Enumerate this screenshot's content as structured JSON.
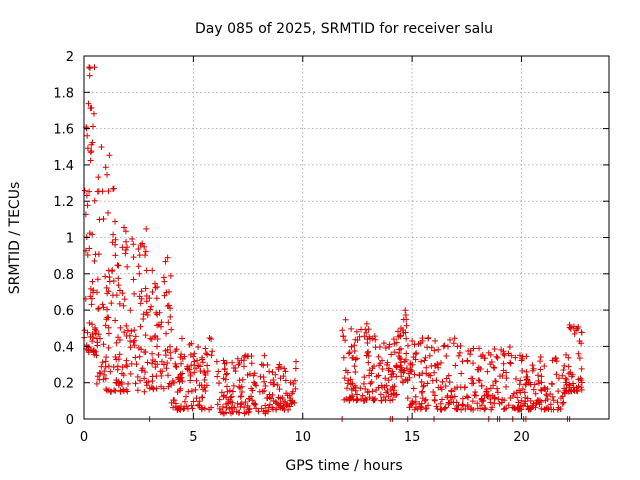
{
  "chart_data": {
    "type": "scatter",
    "title": "Day 085 of 2025, SRMTID for receiver salu",
    "xlabel": "GPS time / hours",
    "ylabel": "SRMTID / TECUs",
    "xlim": [
      0,
      24
    ],
    "ylim": [
      0,
      2
    ],
    "xticks": [
      0,
      5,
      10,
      15,
      20
    ],
    "xtick_labels": [
      "0",
      "5",
      "10",
      "15",
      "20"
    ],
    "yticks": [
      0,
      0.2,
      0.4,
      0.6,
      0.8,
      1,
      1.2,
      1.4,
      1.6,
      1.8,
      2
    ],
    "ytick_labels": [
      "0",
      "0.2",
      "0.4",
      "0.6",
      "0.8",
      "1",
      "1.2",
      "1.4",
      "1.6",
      "1.8",
      "2"
    ],
    "grid": true,
    "marker": "+",
    "marker_color": "#e00000",
    "series": [
      {
        "name": "SRMTID",
        "segments": [
          {
            "x0": 0.0,
            "x1": 0.5,
            "y_lo": 0.35,
            "y_hi": 1.95,
            "n": 60
          },
          {
            "x0": 0.5,
            "x1": 1.5,
            "y_lo": 0.15,
            "y_hi": 1.5,
            "n": 90
          },
          {
            "x0": 1.5,
            "x1": 3.0,
            "y_lo": 0.15,
            "y_hi": 1.1,
            "n": 110
          },
          {
            "x0": 3.0,
            "x1": 4.0,
            "y_lo": 0.15,
            "y_hi": 0.9,
            "n": 70
          },
          {
            "x0": 4.0,
            "x1": 6.0,
            "y_lo": 0.05,
            "y_hi": 0.45,
            "n": 110
          },
          {
            "x0": 6.0,
            "x1": 8.5,
            "y_lo": 0.03,
            "y_hi": 0.35,
            "n": 130
          },
          {
            "x0": 8.5,
            "x1": 9.7,
            "y_lo": 0.05,
            "y_hi": 0.32,
            "n": 60
          },
          {
            "x0": 11.8,
            "x1": 13.5,
            "y_lo": 0.1,
            "y_hi": 0.55,
            "n": 100
          },
          {
            "x0": 13.5,
            "x1": 14.3,
            "y_lo": 0.1,
            "y_hi": 0.45,
            "n": 50
          },
          {
            "x0": 14.3,
            "x1": 14.8,
            "y_lo": 0.2,
            "y_hi": 0.6,
            "n": 40
          },
          {
            "x0": 14.8,
            "x1": 17.5,
            "y_lo": 0.05,
            "y_hi": 0.45,
            "n": 140
          },
          {
            "x0": 17.5,
            "x1": 20.0,
            "y_lo": 0.05,
            "y_hi": 0.4,
            "n": 130
          },
          {
            "x0": 20.0,
            "x1": 22.0,
            "y_lo": 0.05,
            "y_hi": 0.35,
            "n": 100
          },
          {
            "x0": 22.0,
            "x1": 22.8,
            "y_lo": 0.15,
            "y_hi": 0.52,
            "n": 50
          }
        ],
        "zero_points_x": [
          3.0,
          11.8,
          14.0,
          14.1,
          14.8,
          16.0,
          18.5,
          18.9,
          19.0,
          19.6,
          20.1,
          20.2,
          22.1,
          22.2
        ]
      }
    ]
  }
}
